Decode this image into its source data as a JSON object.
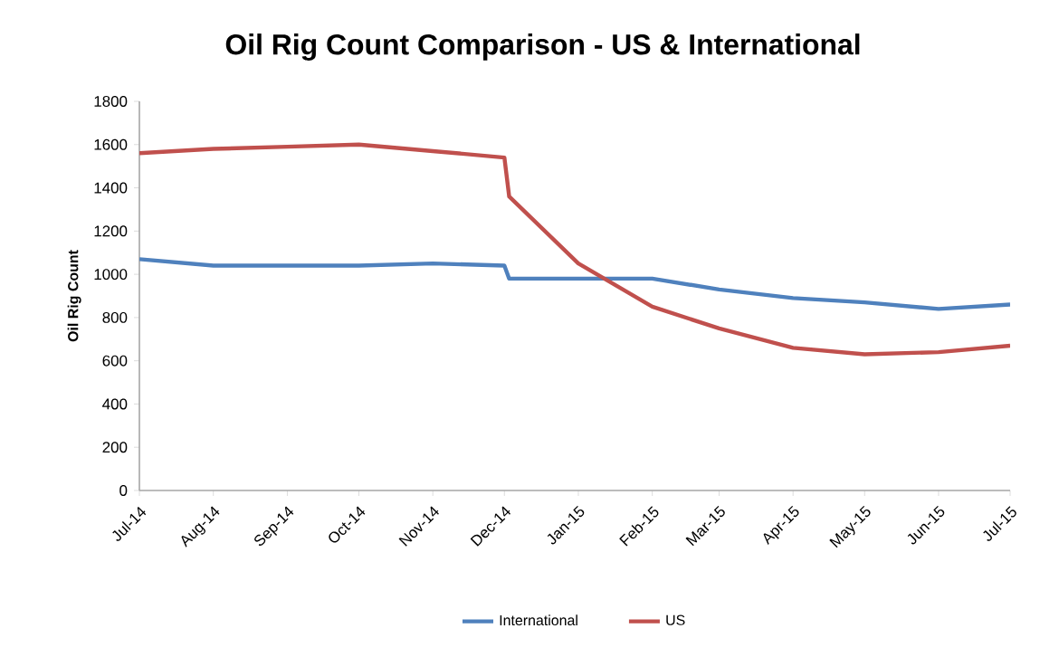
{
  "chart_data": {
    "type": "line",
    "title": "Oil Rig Count Comparison - US & International",
    "ylabel": "Oil Rig Count",
    "xlim": [
      "2014-07-01",
      "2015-07-01"
    ],
    "xticks": [
      {
        "value": "2014-07-01",
        "label": "Jul-14"
      },
      {
        "value": "2014-08-01",
        "label": "Aug-14"
      },
      {
        "value": "2014-09-01",
        "label": "Sep-14"
      },
      {
        "value": "2014-10-01",
        "label": "Oct-14"
      },
      {
        "value": "2014-11-01",
        "label": "Nov-14"
      },
      {
        "value": "2014-12-01",
        "label": "Dec-14"
      },
      {
        "value": "2015-01-01",
        "label": "Jan-15"
      },
      {
        "value": "2015-02-01",
        "label": "Feb-15"
      },
      {
        "value": "2015-03-01",
        "label": "Mar-15"
      },
      {
        "value": "2015-04-01",
        "label": "Apr-15"
      },
      {
        "value": "2015-05-01",
        "label": "May-15"
      },
      {
        "value": "2015-06-01",
        "label": "Jun-15"
      },
      {
        "value": "2015-07-01",
        "label": "Jul-15"
      }
    ],
    "ylim": [
      0,
      1800
    ],
    "yticks": [
      0,
      200,
      400,
      600,
      800,
      1000,
      1200,
      1400,
      1600,
      1800
    ],
    "grid": false,
    "legend": "bottom",
    "marker": "none",
    "line_style": "solid",
    "series": [
      {
        "name": "International",
        "color": "#4f81bd",
        "x": [
          "2014-07-01",
          "2014-08-01",
          "2014-09-01",
          "2014-10-01",
          "2014-11-01",
          "2014-12-01",
          "2014-12-03",
          "2015-01-01",
          "2015-02-01",
          "2015-03-01",
          "2015-04-01",
          "2015-05-01",
          "2015-06-01",
          "2015-07-01"
        ],
        "values": [
          1070,
          1040,
          1040,
          1040,
          1050,
          1040,
          980,
          980,
          980,
          930,
          890,
          870,
          840,
          860
        ]
      },
      {
        "name": "US",
        "color": "#c0504d",
        "x": [
          "2014-07-01",
          "2014-08-01",
          "2014-09-01",
          "2014-10-01",
          "2014-11-01",
          "2014-12-01",
          "2014-12-03",
          "2015-01-01",
          "2015-02-01",
          "2015-03-01",
          "2015-04-01",
          "2015-05-01",
          "2015-06-01",
          "2015-07-01"
        ],
        "values": [
          1560,
          1580,
          1590,
          1600,
          1570,
          1540,
          1360,
          1050,
          850,
          750,
          660,
          630,
          640,
          670
        ]
      }
    ]
  }
}
